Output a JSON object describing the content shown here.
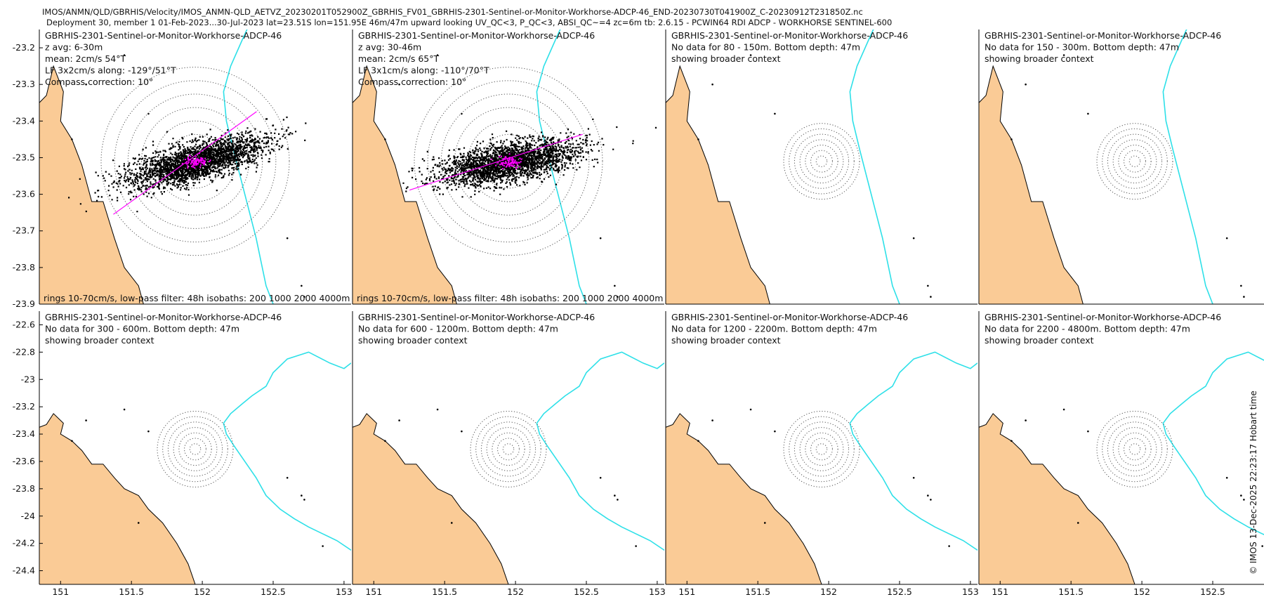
{
  "header": {
    "line1": "IMOS/ANMN/QLD/GBRHIS/Velocity/IMOS_ANMN-QLD_AETVZ_20230201T052900Z_GBRHIS_FV01_GBRHIS-2301-Sentinel-or-Monitor-Workhorse-ADCP-46_END-20230730T041900Z_C-20230912T231850Z.nc",
    "line2": "Deployment 30, member 1 01-Feb-2023...30-Jul-2023 lat=23.51S lon=151.95E 46m/47m upward looking UV_QC<3, P_QC<3, ABSI_QC~=4 zc=6m tb: 2.6.15 - PCWIN64 RDI ADCP - WORKHORSE SENTINEL-600"
  },
  "side_note": "© IMOS 13-Dec-2025 22:23:17 Hobart time",
  "colors": {
    "land": "#FACB96",
    "isobath": "#2EE0E8",
    "scatter": "#000000",
    "magenta": "#FF00FF",
    "rings": "#555555"
  },
  "chart_data": {
    "type": "scatter",
    "instrument": "GBRHIS-2301-Sentinel-or-Monitor-Workhorse-ADCP-46",
    "center": {
      "lon": 151.95,
      "lat": -23.51
    },
    "footer": "rings 10-70cm/s, low-pass filter: 48h isobaths: 200 1000 2000 4000m",
    "x_ticks": [
      "151",
      "151.5",
      "152",
      "152.5",
      "153"
    ],
    "x_tick_values": [
      151,
      151.5,
      152,
      152.5,
      153
    ],
    "rows": [
      {
        "ylim": [
          -23.9,
          -23.15
        ],
        "y_tick_values": [
          -23.2,
          -23.3,
          -23.4,
          -23.5,
          -23.6,
          -23.7,
          -23.8,
          -23.9
        ],
        "y_ticks": [
          "-23.2",
          "-23.3",
          "-23.4",
          "-23.5",
          "-23.6",
          "-23.7",
          "-23.8",
          "-23.9"
        ]
      },
      {
        "ylim": [
          -24.5,
          -22.5
        ],
        "y_tick_values": [
          -22.6,
          -22.8,
          -23.0,
          -23.2,
          -23.4,
          -23.6,
          -23.8,
          -24.0,
          -24.2,
          -24.4
        ],
        "y_ticks": [
          "-22.6",
          "-22.8",
          "-23",
          "-23.2",
          "-23.4",
          "-23.6",
          "-23.8",
          "-24",
          "-24.2",
          "-24.4"
        ]
      }
    ],
    "panels": [
      {
        "row": 0,
        "col": 0,
        "has_data": true,
        "lines": [
          "GBRHIS-2301-Sentinel-or-Monitor-Workhorse-ADCP-46",
          "z avg: 6-30m",
          "mean: 2cm/s 54°T",
          "LF 3x2cm/s along: -129°/51°T",
          "Compass correction: 10°"
        ],
        "ellipse_angle_deg": 15,
        "major_axis_bearing_deg": 51
      },
      {
        "row": 0,
        "col": 1,
        "has_data": true,
        "lines": [
          "GBRHIS-2301-Sentinel-or-Monitor-Workhorse-ADCP-46",
          "z avg: 30-46m",
          "mean: 2cm/s 65°T",
          "LF 3x1cm/s along: -110°/70°T",
          "Compass correction: 10°"
        ],
        "ellipse_angle_deg": 10,
        "major_axis_bearing_deg": 70
      },
      {
        "row": 0,
        "col": 2,
        "has_data": false,
        "lines": [
          "GBRHIS-2301-Sentinel-or-Monitor-Workhorse-ADCP-46",
          "No data for 80 - 150m. Bottom depth: 47m",
          "showing broader context"
        ]
      },
      {
        "row": 0,
        "col": 3,
        "has_data": false,
        "lines": [
          "GBRHIS-2301-Sentinel-or-Monitor-Workhorse-ADCP-46",
          "No data for 150 - 300m. Bottom depth: 47m",
          "showing broader context"
        ]
      },
      {
        "row": 1,
        "col": 0,
        "has_data": false,
        "lines": [
          "GBRHIS-2301-Sentinel-or-Monitor-Workhorse-ADCP-46",
          "No data for 300 - 600m. Bottom depth: 47m",
          "showing broader context"
        ]
      },
      {
        "row": 1,
        "col": 1,
        "has_data": false,
        "lines": [
          "GBRHIS-2301-Sentinel-or-Monitor-Workhorse-ADCP-46",
          "No data for 600 - 1200m. Bottom depth: 47m",
          "showing broader context"
        ]
      },
      {
        "row": 1,
        "col": 2,
        "has_data": false,
        "lines": [
          "GBRHIS-2301-Sentinel-or-Monitor-Workhorse-ADCP-46",
          "No data for 1200 - 2200m. Bottom depth: 47m",
          "showing broader context"
        ]
      },
      {
        "row": 1,
        "col": 3,
        "has_data": false,
        "lines": [
          "GBRHIS-2301-Sentinel-or-Monitor-Workhorse-ADCP-46",
          "No data for 2200 - 4800m. Bottom depth: 47m",
          "showing broader context"
        ]
      }
    ]
  }
}
